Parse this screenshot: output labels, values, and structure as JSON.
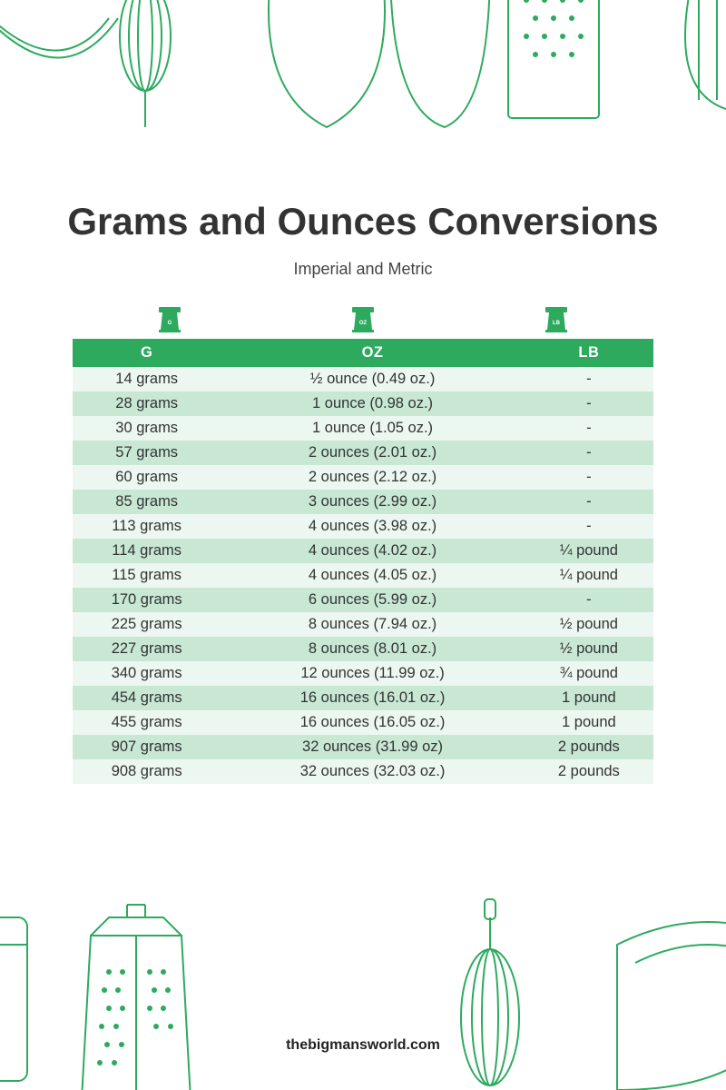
{
  "title": "Grams and Ounces Conversions",
  "subtitle": "Imperial and Metric",
  "footer": "thebigmansworld.com",
  "colors": {
    "accent": "#2eaa5f",
    "deco_stroke": "#2eaa5f",
    "row_odd": "#edf7f1",
    "row_even": "#c8e8d4",
    "header_bg": "#2eaa5f",
    "header_text": "#ffffff",
    "title_text": "#333333",
    "body_text": "#333333"
  },
  "header_icons": [
    "G",
    "OZ",
    "LB"
  ],
  "table": {
    "columns": [
      "G",
      "OZ",
      "LB"
    ],
    "rows": [
      [
        "14 grams",
        "½ ounce (0.49 oz.)",
        "-"
      ],
      [
        "28 grams",
        "1 ounce (0.98 oz.)",
        "-"
      ],
      [
        "30 grams",
        "1 ounce (1.05 oz.)",
        "-"
      ],
      [
        "57 grams",
        "2 ounces (2.01 oz.)",
        "-"
      ],
      [
        "60 grams",
        "2 ounces (2.12 oz.)",
        "-"
      ],
      [
        "85 grams",
        "3 ounces (2.99 oz.)",
        "-"
      ],
      [
        "113 grams",
        "4 ounces (3.98 oz.)",
        "-"
      ],
      [
        "114 grams",
        "4 ounces (4.02 oz.)",
        "¼ pound"
      ],
      [
        "115 grams",
        "4 ounces (4.05 oz.)",
        "¼ pound"
      ],
      [
        "170 grams",
        "6 ounces (5.99 oz.)",
        "-"
      ],
      [
        "225 grams",
        "8 ounces (7.94 oz.)",
        "½ pound"
      ],
      [
        "227 grams",
        "8 ounces (8.01 oz.)",
        "½ pound"
      ],
      [
        "340 grams",
        "12 ounces (11.99 oz.)",
        "¾ pound"
      ],
      [
        "454 grams",
        "16 ounces (16.01 oz.)",
        "1 pound"
      ],
      [
        "455 grams",
        "16 ounces (16.05 oz.)",
        "1 pound"
      ],
      [
        "907 grams",
        "32 ounces (31.99 oz)",
        "2 pounds"
      ],
      [
        "908 grams",
        "32 ounces (32.03 oz.)",
        "2 pounds"
      ]
    ]
  },
  "typography": {
    "title_fontsize": 42,
    "title_weight": 800,
    "subtitle_fontsize": 18,
    "body_fontsize": 16.5,
    "footer_fontsize": 16
  }
}
